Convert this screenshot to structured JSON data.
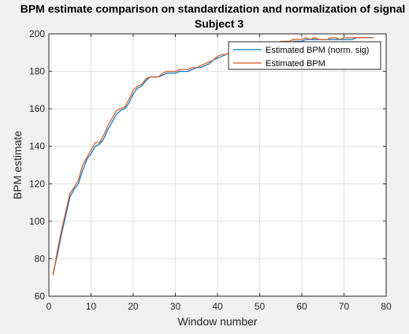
{
  "chart_data": {
    "type": "line",
    "title": "BPM estimate comparison on standardization and normalization of signal",
    "subtitle": "Subject 3",
    "xlabel": "Window number",
    "ylabel": "BPM estimate",
    "xlim": [
      0,
      80
    ],
    "ylim": [
      60,
      200
    ],
    "xticks": [
      "0",
      "10",
      "20",
      "30",
      "40",
      "50",
      "60",
      "70",
      "80"
    ],
    "yticks": [
      "60",
      "80",
      "100",
      "120",
      "140",
      "160",
      "180",
      "200"
    ],
    "grid": true,
    "legend_location": "top-right",
    "legend": [
      "Estimated BPM (norm. sig)",
      "Estimated BPM"
    ],
    "series": [
      {
        "name": "Estimated BPM (norm. sig)",
        "color": "#0072BD",
        "x": [
          1,
          2,
          3,
          4,
          5,
          6,
          7,
          8,
          9,
          10,
          11,
          12,
          13,
          14,
          15,
          16,
          17,
          18,
          19,
          20,
          21,
          22,
          23,
          24,
          25,
          26,
          27,
          28,
          29,
          30,
          31,
          32,
          33,
          34,
          35,
          36,
          37,
          38,
          39,
          40,
          41,
          42,
          43,
          44,
          45,
          46,
          47,
          48,
          49,
          50,
          51,
          52,
          53,
          54,
          55,
          56,
          57,
          58,
          59,
          60,
          61,
          62,
          63,
          64,
          65,
          66,
          67,
          68,
          69,
          70,
          71,
          72,
          73,
          74,
          75,
          76,
          77
        ],
        "values": [
          72,
          82,
          93,
          103,
          113,
          117,
          120,
          127,
          133,
          136,
          140,
          141,
          144,
          149,
          153,
          157,
          159,
          160,
          163,
          168,
          171,
          172,
          175,
          177,
          177,
          177,
          178,
          179,
          179,
          179,
          180,
          180,
          180,
          181,
          182,
          182,
          183,
          184,
          186,
          187,
          188,
          189,
          190,
          191,
          191,
          192,
          192,
          193,
          193,
          193,
          194,
          194,
          194,
          194,
          195,
          195,
          195,
          196,
          196,
          196,
          197,
          197,
          197,
          197,
          197,
          197,
          197,
          197,
          197,
          197,
          197,
          197,
          198,
          198,
          198,
          198,
          198
        ]
      },
      {
        "name": "Estimated BPM",
        "color": "#D95319",
        "x": [
          1,
          2,
          3,
          4,
          5,
          6,
          7,
          8,
          9,
          10,
          11,
          12,
          13,
          14,
          15,
          16,
          17,
          18,
          19,
          20,
          21,
          22,
          23,
          24,
          25,
          26,
          27,
          28,
          29,
          30,
          31,
          32,
          33,
          34,
          35,
          36,
          37,
          38,
          39,
          40,
          41,
          42,
          43,
          44,
          45,
          46,
          47,
          48,
          49,
          50,
          51,
          52,
          53,
          54,
          55,
          56,
          57,
          58,
          59,
          60,
          61,
          62,
          63,
          64,
          65,
          66,
          67,
          68,
          69,
          70,
          71,
          72,
          73,
          74,
          75,
          76,
          77
        ],
        "values": [
          71,
          84,
          95,
          105,
          115,
          118,
          122,
          130,
          134,
          138,
          142,
          142,
          146,
          151,
          155,
          159,
          160,
          161,
          165,
          170,
          172,
          173,
          176,
          177,
          177,
          177,
          179,
          180,
          180,
          180,
          181,
          181,
          181,
          182,
          182,
          183,
          184,
          185,
          186,
          188,
          189,
          189,
          190,
          191,
          191,
          192,
          192,
          193,
          193,
          194,
          194,
          195,
          195,
          195,
          196,
          196,
          196,
          197,
          197,
          197,
          198,
          197,
          198,
          197,
          197,
          197,
          198,
          198,
          197,
          198,
          198,
          198,
          198,
          198,
          198,
          198,
          198
        ]
      }
    ]
  }
}
